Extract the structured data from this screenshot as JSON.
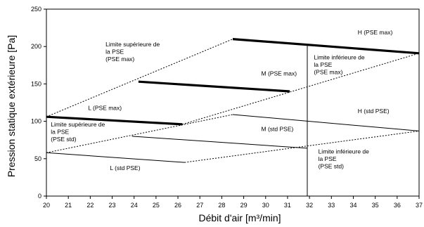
{
  "chart_data": {
    "type": "line",
    "title": "",
    "xlabel": "Débit d'air [m³/min]",
    "ylabel": "Pression statique extérieure [Pa]",
    "xlim": [
      20,
      37
    ],
    "ylim": [
      0,
      250
    ],
    "xticks": [
      20,
      21,
      22,
      23,
      24,
      25,
      26,
      27,
      28,
      29,
      30,
      31,
      32,
      33,
      34,
      35,
      36,
      37
    ],
    "yticks": [
      0,
      50,
      100,
      150,
      200,
      250
    ],
    "grid": false,
    "legend": "none",
    "series": [
      {
        "name": "L (std PSE)",
        "style": "thin",
        "x": [
          20,
          26.3
        ],
        "y": [
          58,
          45
        ]
      },
      {
        "name": "M (std PSE)",
        "style": "thin",
        "x": [
          23.9,
          31.9
        ],
        "y": [
          80,
          64
        ]
      },
      {
        "name": "H (std PSE)",
        "style": "thin",
        "x": [
          28.5,
          37
        ],
        "y": [
          109,
          87
        ]
      },
      {
        "name": "L (PSE max)",
        "style": "bold",
        "x": [
          20,
          26.2
        ],
        "y": [
          106,
          96
        ]
      },
      {
        "name": "M (PSE max)",
        "style": "bold",
        "x": [
          24.2,
          31.1
        ],
        "y": [
          153,
          140
        ]
      },
      {
        "name": "H (PSE max)",
        "style": "bold",
        "x": [
          28.5,
          37
        ],
        "y": [
          210,
          191
        ]
      },
      {
        "name": "Limite supérieure de la PSE (PSE max)",
        "style": "dotted",
        "x": [
          20,
          28.5
        ],
        "y": [
          106,
          210
        ]
      },
      {
        "name": "Limite inférieure de la PSE (PSE max)",
        "style": "dotted",
        "x": [
          26.2,
          37
        ],
        "y": [
          96,
          191
        ]
      },
      {
        "name": "Limite supérieure de la PSE (PSE std)",
        "style": "dotted",
        "x": [
          20,
          28.5
        ],
        "y": [
          58,
          109
        ]
      },
      {
        "name": "Limite inférieure de la PSE (PSE std)",
        "style": "dotted",
        "x": [
          26.3,
          37
        ],
        "y": [
          45,
          87
        ]
      },
      {
        "name": "vertical line",
        "style": "thin",
        "x": [
          31.9,
          31.9
        ],
        "y": [
          0,
          203
        ]
      }
    ],
    "labels": [
      {
        "lines": [
          "L (PSE max)"
        ],
        "x": 21.9,
        "y": 115
      },
      {
        "lines": [
          "M (PSE max)"
        ],
        "x": 29.8,
        "y": 161
      },
      {
        "lines": [
          "H (PSE max)"
        ],
        "x": 34.2,
        "y": 216
      },
      {
        "lines": [
          "L (std PSE)"
        ],
        "x": 22.9,
        "y": 35
      },
      {
        "lines": [
          "M (std PSE)"
        ],
        "x": 29.8,
        "y": 87
      },
      {
        "lines": [
          "H (std PSE)"
        ],
        "x": 34.2,
        "y": 111
      },
      {
        "lines": [
          "Limite supérieure de",
          "la PSE",
          "(PSE max)"
        ],
        "x": 22.7,
        "y": 200
      },
      {
        "lines": [
          "Limite inférieure de",
          "la PSE",
          "(PSE max)"
        ],
        "x": 32.2,
        "y": 183
      },
      {
        "lines": [
          "Limite supérieure de",
          "la PSE",
          "(PSE std)"
        ],
        "x": 20.2,
        "y": 93
      },
      {
        "lines": [
          "Limite inférieure de",
          "la PSE",
          "(PSE std)"
        ],
        "x": 32.4,
        "y": 57
      }
    ]
  }
}
